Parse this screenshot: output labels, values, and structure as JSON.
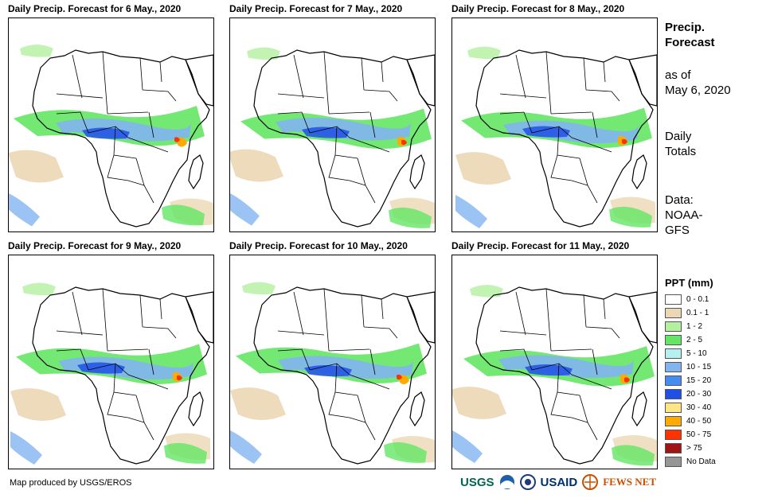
{
  "panels": [
    {
      "title": "Daily Precip. Forecast for 6 May., 2020"
    },
    {
      "title": "Daily Precip. Forecast for 7 May., 2020"
    },
    {
      "title": "Daily Precip. Forecast for 8 May., 2020"
    },
    {
      "title": "Daily Precip. Forecast for 9 May., 2020"
    },
    {
      "title": "Daily Precip. Forecast for 10 May., 2020"
    },
    {
      "title": "Daily Precip. Forecast for 11 May., 2020"
    }
  ],
  "sidebar": {
    "title_line1": "Precip.",
    "title_line2": "Forecast",
    "asof_line1": "as of",
    "asof_line2": "May 6, 2020",
    "totals_line1": "Daily",
    "totals_line2": "Totals",
    "data_line1": "Data:",
    "data_line2": "NOAA-",
    "data_line3": "GFS"
  },
  "legend": {
    "title": "PPT (mm)",
    "items": [
      {
        "label": "0 - 0.1",
        "color": "#ffffff"
      },
      {
        "label": "0.1 - 1",
        "color": "#ebd7b4"
      },
      {
        "label": "1 - 2",
        "color": "#b4f0a0"
      },
      {
        "label": "2 - 5",
        "color": "#64e664"
      },
      {
        "label": "5 - 10",
        "color": "#b4f0f0"
      },
      {
        "label": "10 - 15",
        "color": "#82b4f0"
      },
      {
        "label": "15 - 20",
        "color": "#468cf0"
      },
      {
        "label": "20 - 30",
        "color": "#1e50e6"
      },
      {
        "label": "30 - 40",
        "color": "#ffe682"
      },
      {
        "label": "40 - 50",
        "color": "#ffaa00"
      },
      {
        "label": "50 - 75",
        "color": "#ff3200"
      },
      {
        "label": "> 75",
        "color": "#a01414"
      },
      {
        "label": "No Data",
        "color": "#969696"
      }
    ]
  },
  "footer": {
    "credit": "Map produced by USGS/EROS"
  },
  "logos": {
    "usgs": "USGS",
    "usaid": "USAID",
    "fewsnet": "FEWS NET"
  }
}
